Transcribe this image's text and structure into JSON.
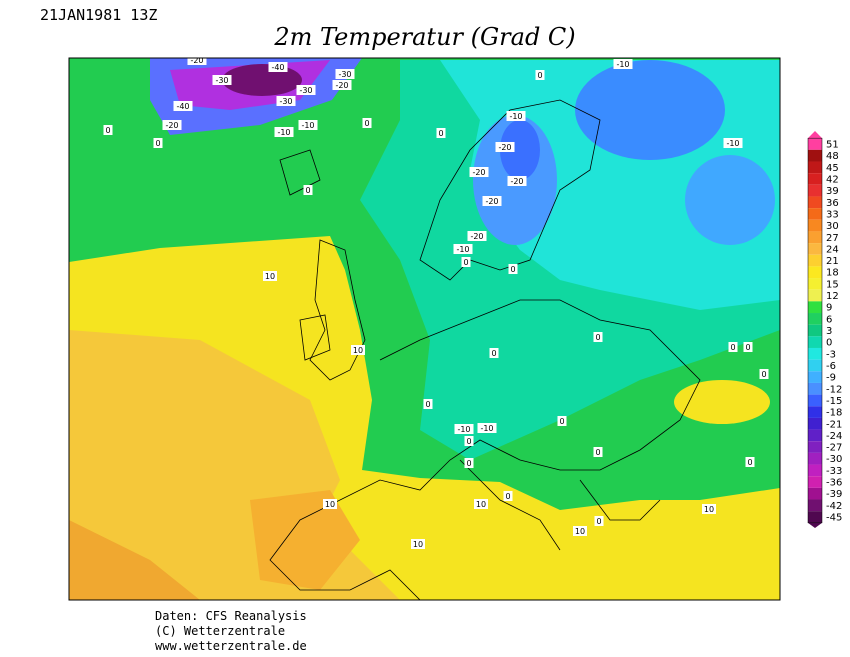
{
  "header": {
    "date": "21JAN1981 13Z",
    "title": "2m Temperatur (Grad C)"
  },
  "colorbar": {
    "levels": [
      51,
      48,
      45,
      42,
      39,
      36,
      33,
      30,
      27,
      24,
      21,
      18,
      15,
      12,
      9,
      6,
      3,
      0,
      -3,
      -6,
      -9,
      -12,
      -15,
      -18,
      -21,
      -24,
      -27,
      -30,
      -33,
      -36,
      -39,
      -42,
      -45
    ],
    "colors": [
      "#ff3fa0",
      "#a01010",
      "#c01818",
      "#d82020",
      "#e83030",
      "#f04a20",
      "#f46a18",
      "#f88820",
      "#faa030",
      "#fbb840",
      "#fdd030",
      "#fbe820",
      "#f5f030",
      "#eef050",
      "#30e040",
      "#20d060",
      "#10c880",
      "#10d8b0",
      "#20e8e0",
      "#30d0f0",
      "#40b0ff",
      "#4a90ff",
      "#3a60ff",
      "#3030e8",
      "#4020d0",
      "#6020c8",
      "#8020c0",
      "#a020c0",
      "#c020c0",
      "#d020b0",
      "#a01090",
      "#701070",
      "#500850"
    ]
  },
  "map": {
    "contour_labels": [
      -20,
      -30,
      -40,
      -40,
      -20,
      -30,
      -20,
      -30,
      -30,
      -10,
      -10,
      0,
      0,
      0,
      0,
      0,
      -10,
      -10,
      -20,
      -20,
      -20,
      -20,
      -20,
      -10,
      0,
      -10,
      0,
      10,
      10,
      0,
      0,
      0,
      0,
      -10,
      -10,
      0,
      0,
      0,
      0,
      0,
      0,
      0,
      0,
      0,
      0,
      10,
      10,
      10,
      10,
      10
    ]
  },
  "footer": {
    "lines": [
      "Daten: CFS Reanalysis",
      "(C) Wetterzentrale",
      "www.wetterzentrale.de"
    ]
  }
}
